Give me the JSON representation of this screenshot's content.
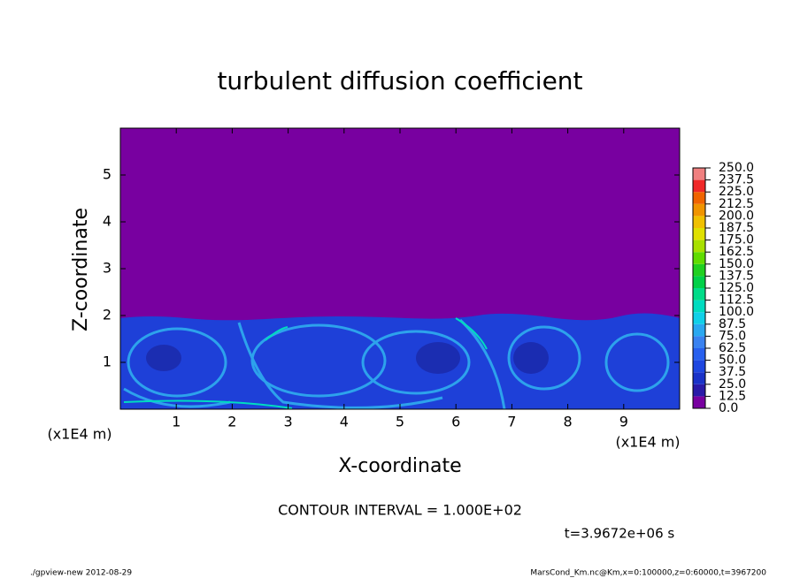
{
  "chart_data": {
    "type": "contour",
    "title": "turbulent diffusion coefficient",
    "x_label": "X-coordinate",
    "y_label": "Z-coordinate",
    "x_unit_label": "(x1E4 m)",
    "y_unit_label": "(x1E4 m)",
    "xlim": [
      0,
      10
    ],
    "ylim": [
      0,
      6
    ],
    "xticks": [
      1,
      2,
      3,
      4,
      5,
      6,
      7,
      8,
      9
    ],
    "yticks": [
      1,
      2,
      3,
      4,
      5
    ],
    "levels": [
      {
        "value": 0,
        "label": "0.0"
      },
      12.5,
      {
        "value": 25,
        "label": "25.0"
      },
      37.5,
      {
        "value": 50,
        "label": "50.0"
      },
      62.5,
      {
        "value": 75,
        "label": "75.0"
      },
      87.5,
      {
        "value": 100,
        "label": "100.0"
      },
      112.5,
      {
        "value": 125,
        "label": "125.0"
      },
      137.5,
      {
        "value": 150,
        "label": "150.0"
      },
      162.5,
      {
        "value": 175,
        "label": "175.0"
      },
      187.5,
      {
        "value": 200,
        "label": "200.0"
      },
      212.5,
      {
        "value": 225,
        "label": "225.0"
      },
      237.5,
      {
        "value": 250,
        "label": "250.0"
      }
    ],
    "colors": [
      "#7800a0",
      "#2a1aa8",
      "#1a32c8",
      "#1e46e0",
      "#2860ee",
      "#3a82f0",
      "#2aa8f0",
      "#10d0e8",
      "#00dcc0",
      "#00dc88",
      "#00d048",
      "#20d020",
      "#60dc00",
      "#a8e000",
      "#e0e000",
      "#f0c000",
      "#f09400",
      "#f06400",
      "#f02828",
      "#f08080"
    ],
    "contour_interval": "CONTOUR INTERVAL = 1.000E+02",
    "time_label": "t=3.9672e+06 s",
    "footer_left": "./gpview-new  2012-08-29",
    "footer_right": "MarsCond_Km.nc@Km,x=0:100000,z=0:60000,t=3967200"
  }
}
